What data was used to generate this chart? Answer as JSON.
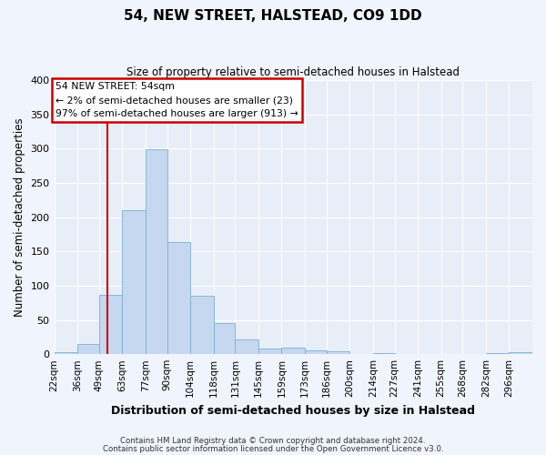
{
  "title": "54, NEW STREET, HALSTEAD, CO9 1DD",
  "subtitle": "Size of property relative to semi-detached houses in Halstead",
  "xlabel": "Distribution of semi-detached houses by size in Halstead",
  "ylabel": "Number of semi-detached properties",
  "bin_labels": [
    "22sqm",
    "36sqm",
    "49sqm",
    "63sqm",
    "77sqm",
    "90sqm",
    "104sqm",
    "118sqm",
    "131sqm",
    "145sqm",
    "159sqm",
    "173sqm",
    "186sqm",
    "200sqm",
    "214sqm",
    "227sqm",
    "241sqm",
    "255sqm",
    "268sqm",
    "282sqm",
    "296sqm"
  ],
  "bar_values": [
    3,
    15,
    87,
    210,
    299,
    163,
    85,
    45,
    22,
    8,
    9,
    5,
    4,
    0,
    1,
    0,
    0,
    0,
    0,
    2,
    3
  ],
  "bar_color": "#c5d8ef",
  "bar_edgecolor": "#7aafd4",
  "background_color": "#e8eef8",
  "fig_background": "#f0f4fc",
  "ylim": [
    0,
    400
  ],
  "yticks": [
    0,
    50,
    100,
    150,
    200,
    250,
    300,
    350,
    400
  ],
  "vline_color": "#cc0000",
  "annotation_title": "54 NEW STREET: 54sqm",
  "annotation_line1": "← 2% of semi-detached houses are smaller (23)",
  "annotation_line2": "97% of semi-detached houses are larger (913) →",
  "annotation_box_color": "#ffffff",
  "annotation_box_edgecolor": "#cc0000",
  "footer_line1": "Contains HM Land Registry data © Crown copyright and database right 2024.",
  "footer_line2": "Contains public sector information licensed under the Open Government Licence v3.0.",
  "bin_edges": [
    22,
    36,
    49,
    63,
    77,
    90,
    104,
    118,
    131,
    145,
    159,
    173,
    186,
    200,
    214,
    227,
    241,
    255,
    268,
    282,
    296,
    310
  ]
}
